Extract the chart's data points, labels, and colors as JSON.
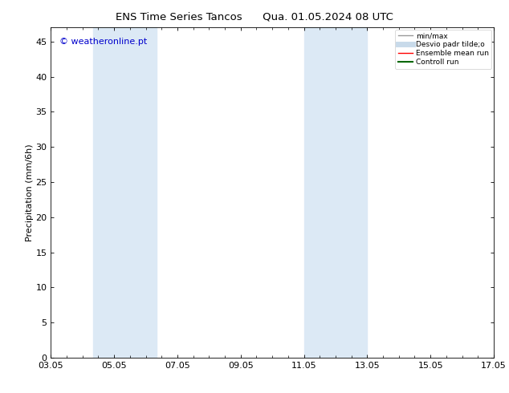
{
  "title_left": "ENS Time Series Tancos",
  "title_right": "Qua. 01.05.2024 08 UTC",
  "ylabel": "Precipitation (mm/6h)",
  "ylim": [
    0,
    47
  ],
  "yticks": [
    0,
    5,
    10,
    15,
    20,
    25,
    30,
    35,
    40,
    45
  ],
  "xtick_labels": [
    "03.05",
    "05.05",
    "07.05",
    "09.05",
    "11.05",
    "13.05",
    "15.05",
    "17.05"
  ],
  "xtick_positions": [
    0,
    2,
    4,
    6,
    8,
    10,
    12,
    14
  ],
  "x_min": 0,
  "x_max": 14,
  "shaded_bands": [
    {
      "x_start": 1.33,
      "x_end": 2.67,
      "color": "#dce9f5"
    },
    {
      "x_start": 2.67,
      "x_end": 3.33,
      "color": "#dce9f5"
    },
    {
      "x_start": 7.33,
      "x_end": 8.67,
      "color": "#dce9f5"
    },
    {
      "x_start": 8.67,
      "x_end": 10.0,
      "color": "#dce9f5"
    }
  ],
  "watermark_text": "© weatheronline.pt",
  "watermark_color": "#0000cc",
  "background_color": "#ffffff",
  "legend_items": [
    {
      "label": "min/max",
      "color": "#999999",
      "lw": 1.0
    },
    {
      "label": "Desvio padr tilde;o",
      "color": "#c8daea",
      "lw": 5
    },
    {
      "label": "Ensemble mean run",
      "color": "#ff0000",
      "lw": 1.0
    },
    {
      "label": "Controll run",
      "color": "#006600",
      "lw": 1.5
    }
  ],
  "font_size": 8,
  "title_font_size": 9.5,
  "ylabel_font_size": 8,
  "watermark_font_size": 8
}
